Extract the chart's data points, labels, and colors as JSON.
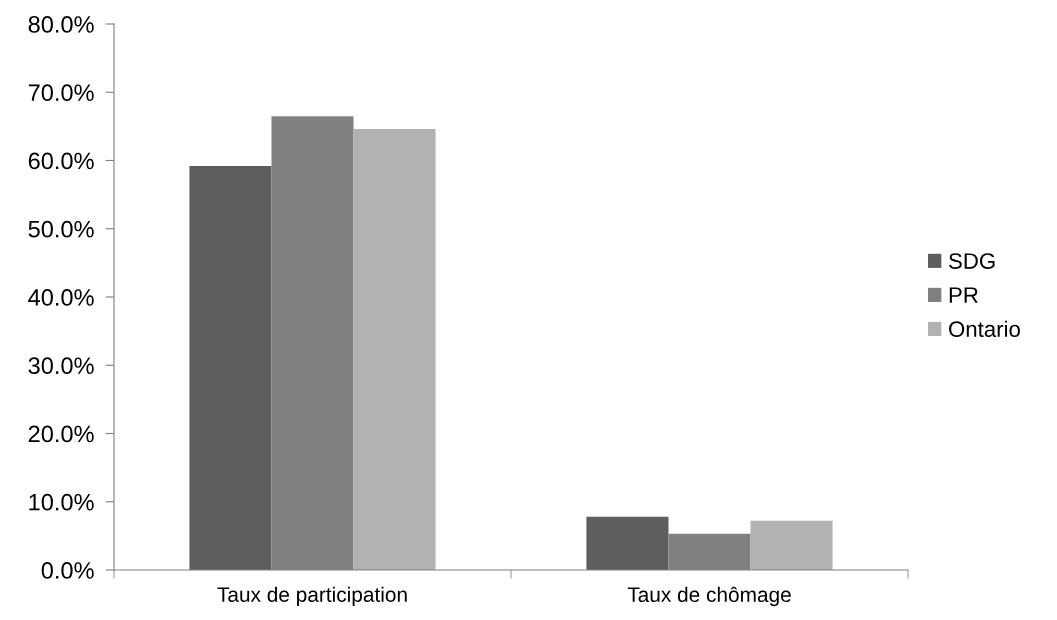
{
  "chart_data": {
    "type": "bar",
    "categories": [
      "Taux de participation",
      "Taux de chômage"
    ],
    "series": [
      {
        "name": "SDG",
        "color": "#5e5e5e",
        "values": [
          59.2,
          7.8
        ]
      },
      {
        "name": "PR",
        "color": "#808080",
        "values": [
          66.5,
          5.3
        ]
      },
      {
        "name": "Ontario",
        "color": "#b2b2b2",
        "values": [
          64.6,
          7.2
        ]
      }
    ],
    "ylim": [
      0,
      80
    ],
    "yticks": [
      {
        "value": 0,
        "label": "0.0%"
      },
      {
        "value": 10,
        "label": "10.0%"
      },
      {
        "value": 20,
        "label": "20.0%"
      },
      {
        "value": 30,
        "label": "30.0%"
      },
      {
        "value": 40,
        "label": "40.0%"
      },
      {
        "value": 50,
        "label": "50.0%"
      },
      {
        "value": 60,
        "label": "60.0%"
      },
      {
        "value": 70,
        "label": "70.0%"
      },
      {
        "value": 80,
        "label": "80.0%"
      }
    ],
    "grid": false,
    "legend": "right"
  }
}
